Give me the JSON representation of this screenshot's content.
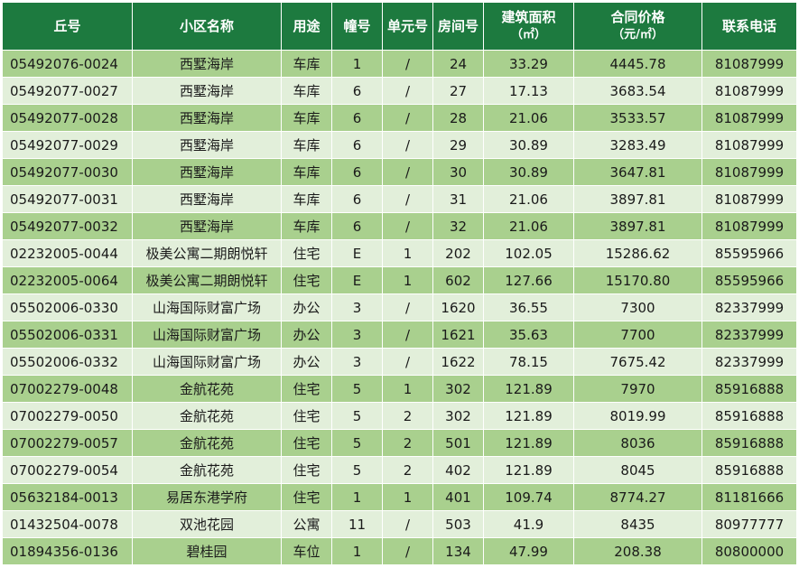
{
  "table": {
    "headers": {
      "parcel": "丘号",
      "name": "小区名称",
      "use": "用途",
      "building": "幢号",
      "unit": "单元号",
      "room": "房间号",
      "area": "建筑面积",
      "area_unit": "（㎡）",
      "price": "合同价格",
      "price_unit": "（元/㎡）",
      "phone": "联系电话"
    },
    "rows": [
      {
        "parcel": "05492076-0024",
        "name": "西墅海岸",
        "use": "车库",
        "building": "1",
        "unit": "/",
        "room": "24",
        "area": "33.29",
        "price": "4445.78",
        "phone": "81087999"
      },
      {
        "parcel": "05492077-0027",
        "name": "西墅海岸",
        "use": "车库",
        "building": "6",
        "unit": "/",
        "room": "27",
        "area": "17.13",
        "price": "3683.54",
        "phone": "81087999"
      },
      {
        "parcel": "05492077-0028",
        "name": "西墅海岸",
        "use": "车库",
        "building": "6",
        "unit": "/",
        "room": "28",
        "area": "21.06",
        "price": "3533.57",
        "phone": "81087999"
      },
      {
        "parcel": "05492077-0029",
        "name": "西墅海岸",
        "use": "车库",
        "building": "6",
        "unit": "/",
        "room": "29",
        "area": "30.89",
        "price": "3283.49",
        "phone": "81087999"
      },
      {
        "parcel": "05492077-0030",
        "name": "西墅海岸",
        "use": "车库",
        "building": "6",
        "unit": "/",
        "room": "30",
        "area": "30.89",
        "price": "3647.81",
        "phone": "81087999"
      },
      {
        "parcel": "05492077-0031",
        "name": "西墅海岸",
        "use": "车库",
        "building": "6",
        "unit": "/",
        "room": "31",
        "area": "21.06",
        "price": "3897.81",
        "phone": "81087999"
      },
      {
        "parcel": "05492077-0032",
        "name": "西墅海岸",
        "use": "车库",
        "building": "6",
        "unit": "/",
        "room": "32",
        "area": "21.06",
        "price": "3897.81",
        "phone": "81087999"
      },
      {
        "parcel": "02232005-0044",
        "name": "极美公寓二期朗悦轩",
        "use": "住宅",
        "building": "E",
        "unit": "1",
        "room": "202",
        "area": "102.05",
        "price": "15286.62",
        "phone": "85595966"
      },
      {
        "parcel": "02232005-0064",
        "name": "极美公寓二期朗悦轩",
        "use": "住宅",
        "building": "E",
        "unit": "1",
        "room": "602",
        "area": "127.66",
        "price": "15170.80",
        "phone": "85595966"
      },
      {
        "parcel": "05502006-0330",
        "name": "山海国际财富广场",
        "use": "办公",
        "building": "3",
        "unit": "/",
        "room": "1620",
        "area": "36.55",
        "price": "7300",
        "phone": "82337999"
      },
      {
        "parcel": "05502006-0331",
        "name": "山海国际财富广场",
        "use": "办公",
        "building": "3",
        "unit": "/",
        "room": "1621",
        "area": "35.63",
        "price": "7700",
        "phone": "82337999"
      },
      {
        "parcel": "05502006-0332",
        "name": "山海国际财富广场",
        "use": "办公",
        "building": "3",
        "unit": "/",
        "room": "1622",
        "area": "78.15",
        "price": "7675.42",
        "phone": "82337999"
      },
      {
        "parcel": "07002279-0048",
        "name": "金航花苑",
        "use": "住宅",
        "building": "5",
        "unit": "1",
        "room": "302",
        "area": "121.89",
        "price": "7970",
        "phone": "85916888"
      },
      {
        "parcel": "07002279-0050",
        "name": "金航花苑",
        "use": "住宅",
        "building": "5",
        "unit": "2",
        "room": "302",
        "area": "121.89",
        "price": "8019.99",
        "phone": "85916888"
      },
      {
        "parcel": "07002279-0057",
        "name": "金航花苑",
        "use": "住宅",
        "building": "5",
        "unit": "2",
        "room": "501",
        "area": "121.89",
        "price": "8036",
        "phone": "85916888"
      },
      {
        "parcel": "07002279-0054",
        "name": "金航花苑",
        "use": "住宅",
        "building": "5",
        "unit": "2",
        "room": "402",
        "area": "121.89",
        "price": "8045",
        "phone": "85916888"
      },
      {
        "parcel": "05632184-0013",
        "name": "易居东港学府",
        "use": "住宅",
        "building": "1",
        "unit": "1",
        "room": "401",
        "area": "109.74",
        "price": "8774.27",
        "phone": "81181666"
      },
      {
        "parcel": "01432504-0078",
        "name": "双池花园",
        "use": "公寓",
        "building": "11",
        "unit": "/",
        "room": "503",
        "area": "41.9",
        "price": "8435",
        "phone": "80977777"
      },
      {
        "parcel": "01894356-0136",
        "name": "碧桂园",
        "use": "车位",
        "building": "1",
        "unit": "/",
        "room": "134",
        "area": "47.99",
        "price": "208.38",
        "phone": "80800000"
      }
    ]
  },
  "colors": {
    "header_bg": "#1d7a3f",
    "header_text": "#ffffff",
    "row_odd_bg": "#a9d08e",
    "row_even_bg": "#e2efda",
    "grid_line": "#ffffff"
  }
}
